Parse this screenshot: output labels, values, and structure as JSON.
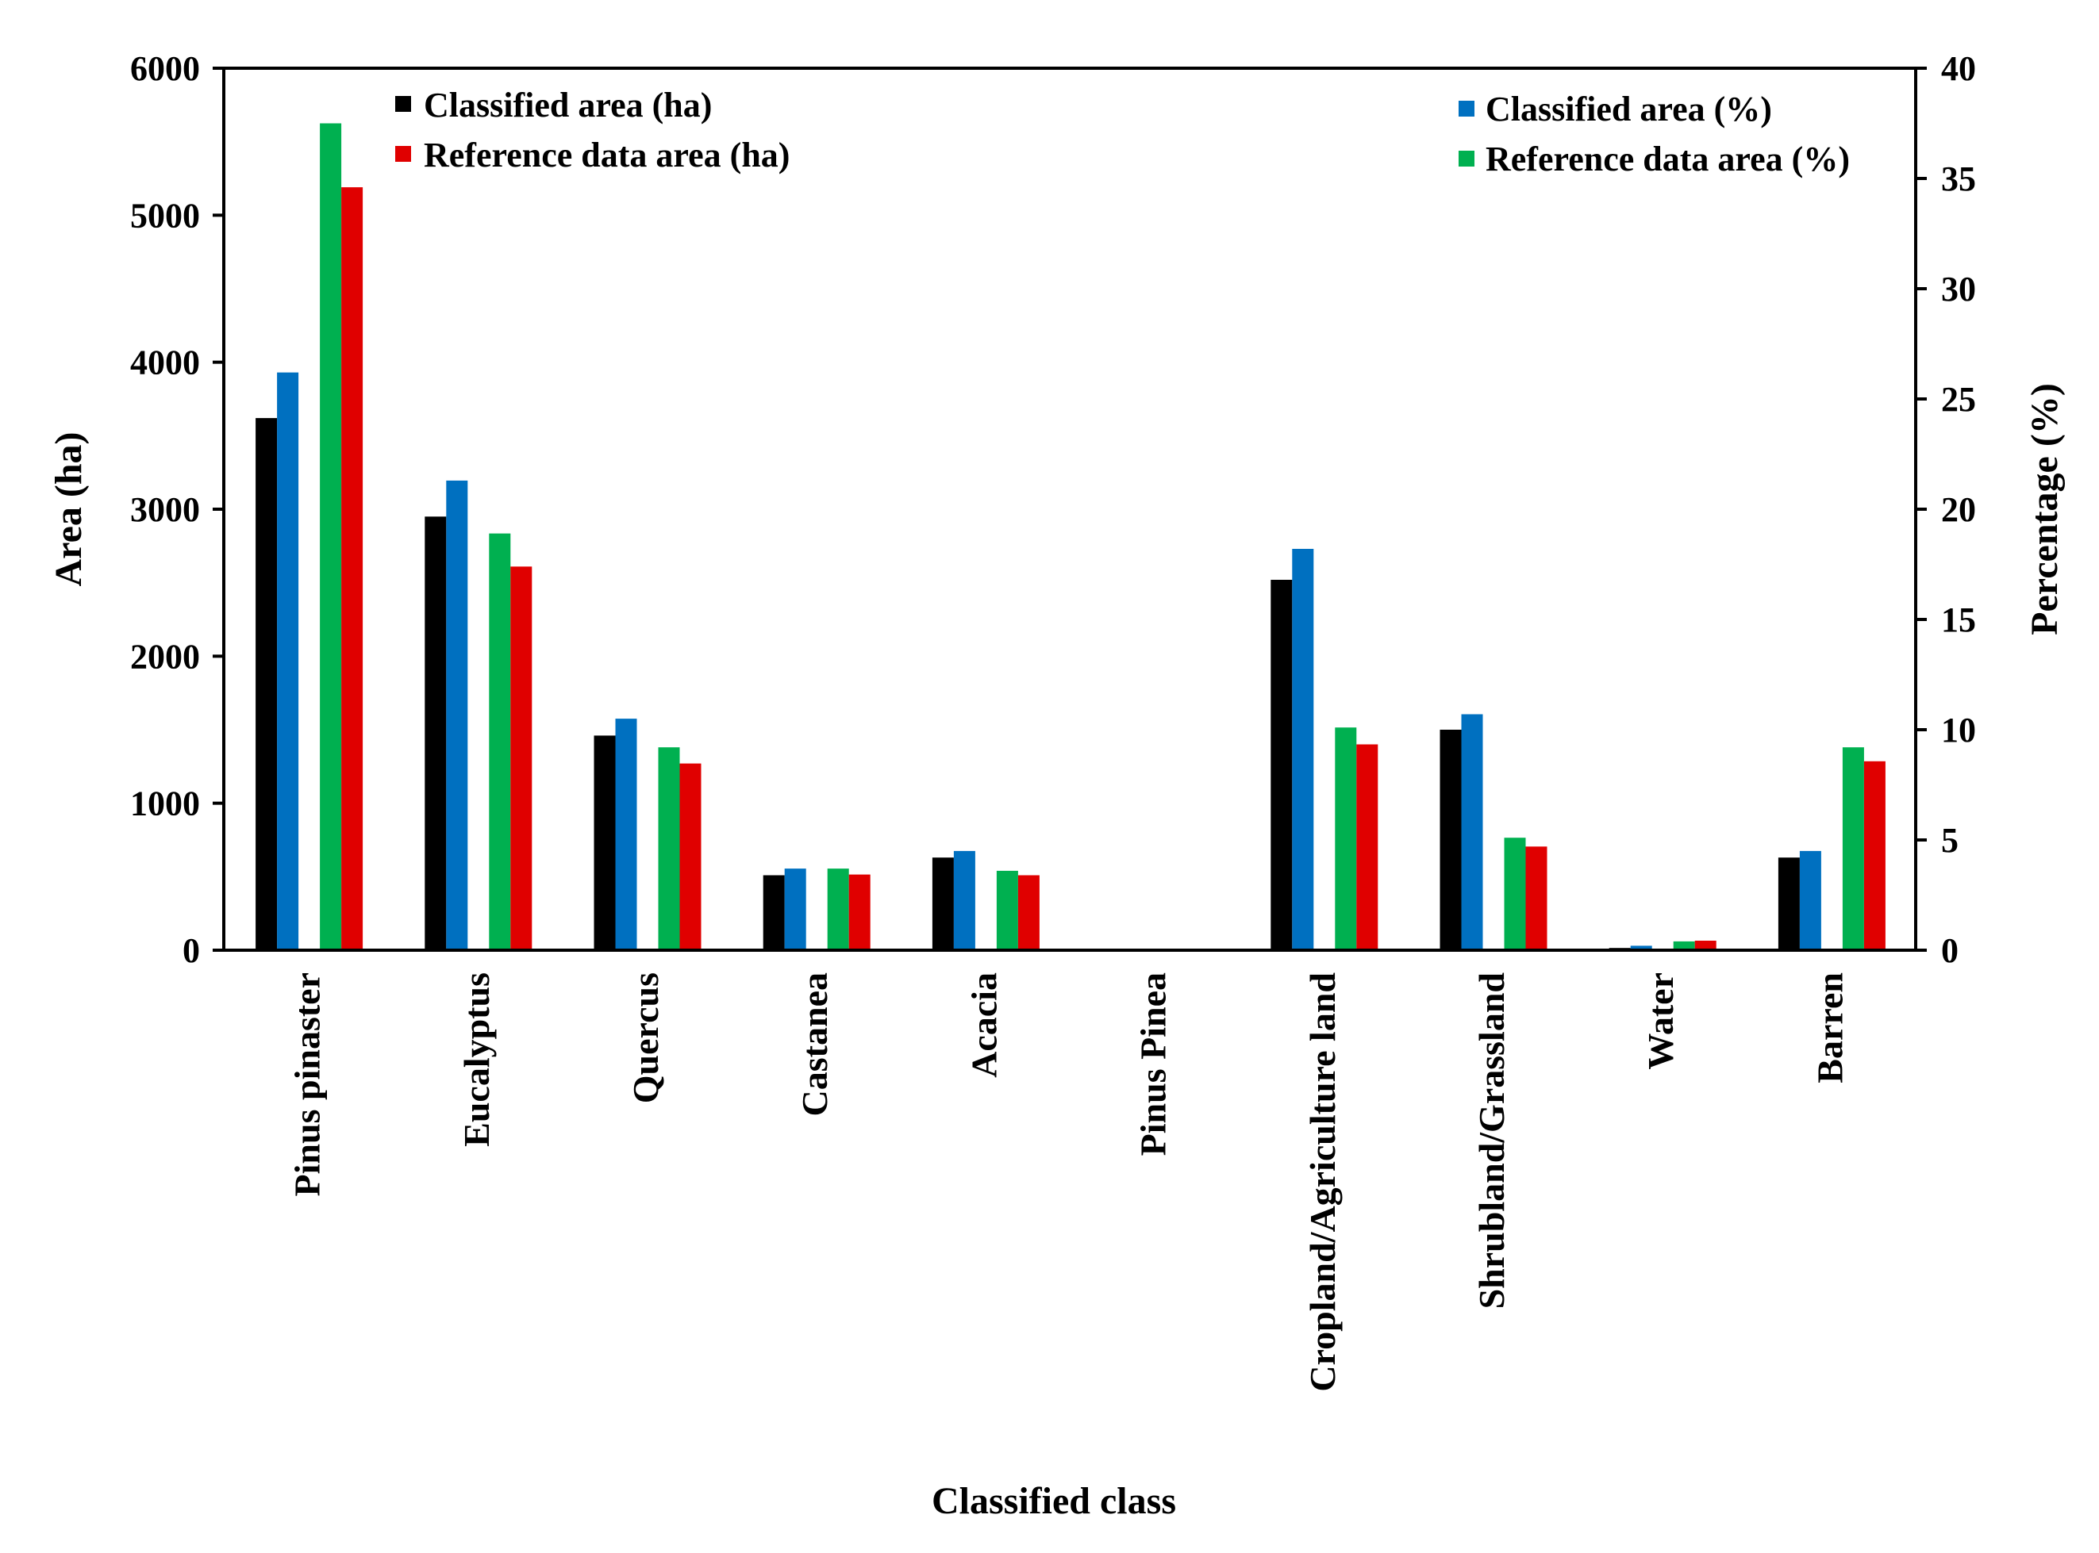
{
  "chart_data": {
    "type": "bar",
    "title": "",
    "xlabel": "Classified class",
    "ylabel": "Area (ha)",
    "ylabel_right": "Percentage (%)",
    "ylim": [
      0,
      6000
    ],
    "ylim_right": [
      0,
      40
    ],
    "yticks": [
      "0",
      "1000",
      "2000",
      "3000",
      "4000",
      "5000",
      "6000"
    ],
    "yticks_right": [
      "0",
      "5",
      "10",
      "15",
      "20",
      "25",
      "30",
      "35",
      "40"
    ],
    "categories": [
      "Pinus pinaster",
      "Eucalyptus",
      "Quercus",
      "Castanea",
      "Acacia",
      "Pinus Pinea",
      "Cropland/Agriculture land",
      "Shrubland/Grassland",
      "Water",
      "Barren"
    ],
    "series": [
      {
        "name": "Classified area (ha)",
        "axis": "left",
        "color": "#000000",
        "values": [
          3620,
          2950,
          1460,
          510,
          630,
          0,
          2520,
          1500,
          15,
          630
        ]
      },
      {
        "name": "Classified area (%)",
        "axis": "right",
        "color": "#0070C0",
        "values": [
          26.2,
          21.3,
          10.5,
          3.7,
          4.5,
          0,
          18.2,
          10.7,
          0.2,
          4.5
        ]
      },
      {
        "name": "Reference data area (%)",
        "axis": "right",
        "color": "#00B050",
        "values": [
          37.5,
          18.9,
          9.2,
          3.7,
          3.6,
          0,
          10.1,
          5.1,
          0.4,
          9.2
        ]
      },
      {
        "name": "Reference data area (ha)",
        "axis": "left",
        "color": "#E00000",
        "values": [
          5190,
          2610,
          1270,
          515,
          510,
          0,
          1400,
          705,
          65,
          1285
        ]
      }
    ],
    "legend_left": [
      "Classified area (ha)",
      "Reference data area (ha)"
    ],
    "legend_right": [
      "Classified area (%)",
      "Reference data area (%)"
    ],
    "legend_placement": "top-left and top-right",
    "grid": false
  }
}
